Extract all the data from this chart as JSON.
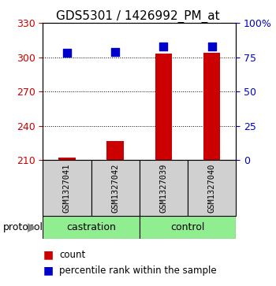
{
  "title": "GDS5301 / 1426992_PM_at",
  "samples": [
    "GSM1327041",
    "GSM1327042",
    "GSM1327039",
    "GSM1327040"
  ],
  "groups": [
    "castration",
    "castration",
    "control",
    "control"
  ],
  "bar_values": [
    212,
    227,
    303,
    304
  ],
  "percentile_values": [
    78,
    79,
    83,
    83
  ],
  "bar_color": "#cc0000",
  "dot_color": "#0000cc",
  "ylim_left": [
    210,
    330
  ],
  "ylim_right": [
    0,
    100
  ],
  "yticks_left": [
    210,
    240,
    270,
    300,
    330
  ],
  "yticks_right": [
    0,
    25,
    50,
    75,
    100
  ],
  "ytick_labels_right": [
    "0",
    "25",
    "50",
    "75",
    "100%"
  ],
  "grid_values": [
    240,
    270,
    300
  ],
  "left_tick_color": "#cc0000",
  "right_tick_color": "#0000cc",
  "bar_width": 0.35,
  "dot_size": 55,
  "legend_count_label": "count",
  "legend_percentile_label": "percentile rank within the sample",
  "protocol_label": "protocol",
  "sample_bg_color": "#d0d0d0",
  "protocol_bg_color": "#90ee90",
  "title_fontsize": 11
}
